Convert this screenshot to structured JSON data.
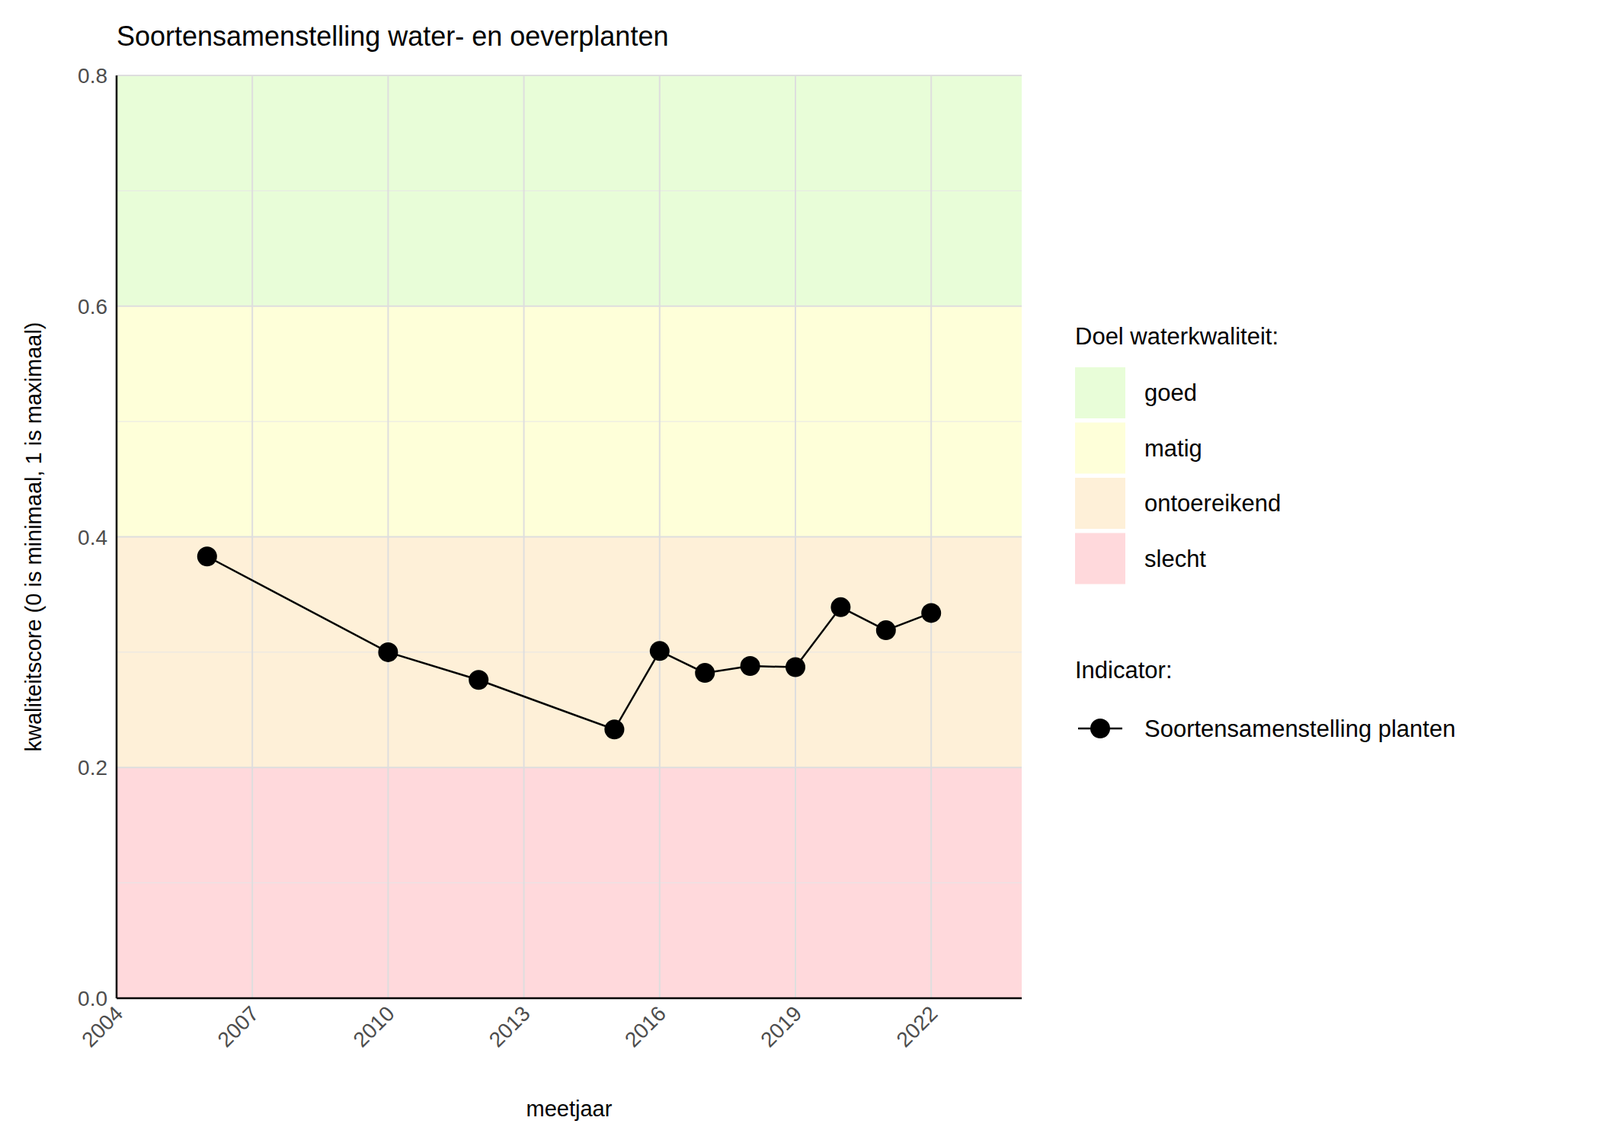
{
  "chart_data": {
    "type": "line",
    "title": "Soortensamenstelling water- en oeverplanten",
    "x_label": "meetjaar",
    "y_label": "kwaliteitscore (0 is minimaal, 1 is maximaal)",
    "x": [
      2006,
      2010,
      2012,
      2015,
      2016,
      2017,
      2018,
      2019,
      2020,
      2021,
      2022
    ],
    "series": [
      {
        "name": "Soortensamenstelling planten",
        "color": "#000000",
        "marker": "circle",
        "line_style": "solid",
        "values": [
          0.383,
          0.3,
          0.276,
          0.233,
          0.301,
          0.282,
          0.288,
          0.287,
          0.339,
          0.319,
          0.334
        ]
      }
    ],
    "xlim": [
      2004,
      2024
    ],
    "xticks": [
      2004,
      2007,
      2010,
      2013,
      2016,
      2019,
      2022
    ],
    "ylim": [
      0,
      0.8
    ],
    "yticks": [
      {
        "value": 0,
        "label": "0.0"
      },
      0.2,
      0.4,
      0.6,
      0.8
    ],
    "grid": true,
    "legend": "right",
    "bands_title": "Doel waterkwaliteit:",
    "series_title": "Indicator:",
    "bands": [
      {
        "name": "goed",
        "from": 0.6,
        "to": 0.8,
        "color": "#e8fdd8"
      },
      {
        "name": "matig",
        "from": 0.4,
        "to": 0.6,
        "color": "#feffd9"
      },
      {
        "name": "ontoereikend",
        "from": 0.2,
        "to": 0.4,
        "color": "#fef0d8"
      },
      {
        "name": "slecht",
        "from": 0,
        "to": 0.2,
        "color": "#ffd9dc"
      }
    ]
  }
}
